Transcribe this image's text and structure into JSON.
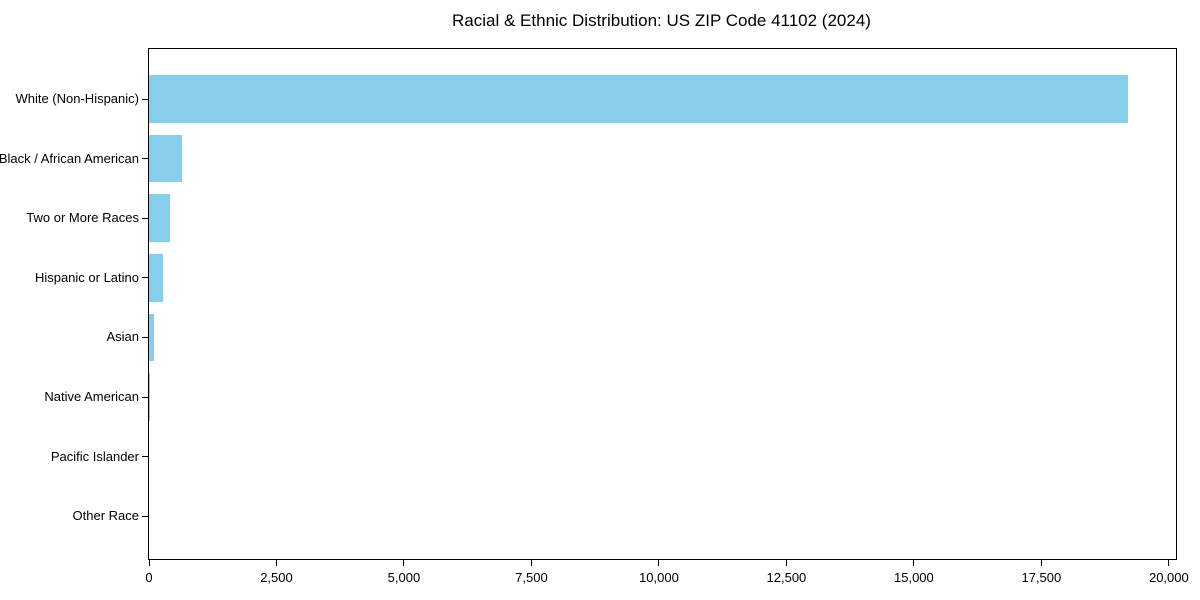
{
  "figure": {
    "background_color": "#ffffff",
    "text_color": "#000000",
    "axis_color": "#000000"
  },
  "chart_data": {
    "type": "bar",
    "orientation": "horizontal",
    "title": "Racial & Ethnic Distribution: US ZIP Code 41102 (2024)",
    "xlabel": "",
    "ylabel": "",
    "categories": [
      "White (Non-Hispanic)",
      "Black / African American",
      "Two or More Races",
      "Hispanic or Latino",
      "Asian",
      "Native American",
      "Pacific Islander",
      "Other Race"
    ],
    "values": [
      19200,
      640,
      410,
      270,
      90,
      20,
      0,
      0
    ],
    "bar_color": "#87CEEB",
    "xlim": [
      0,
      20140
    ],
    "x_ticks": [
      0,
      2500,
      5000,
      7500,
      10000,
      12500,
      15000,
      17500,
      20000
    ],
    "x_tick_labels": [
      "0",
      "2,500",
      "5,000",
      "7,500",
      "10,000",
      "12,500",
      "15,000",
      "17,500",
      "20,000"
    ],
    "grid": false,
    "legend": "none"
  }
}
